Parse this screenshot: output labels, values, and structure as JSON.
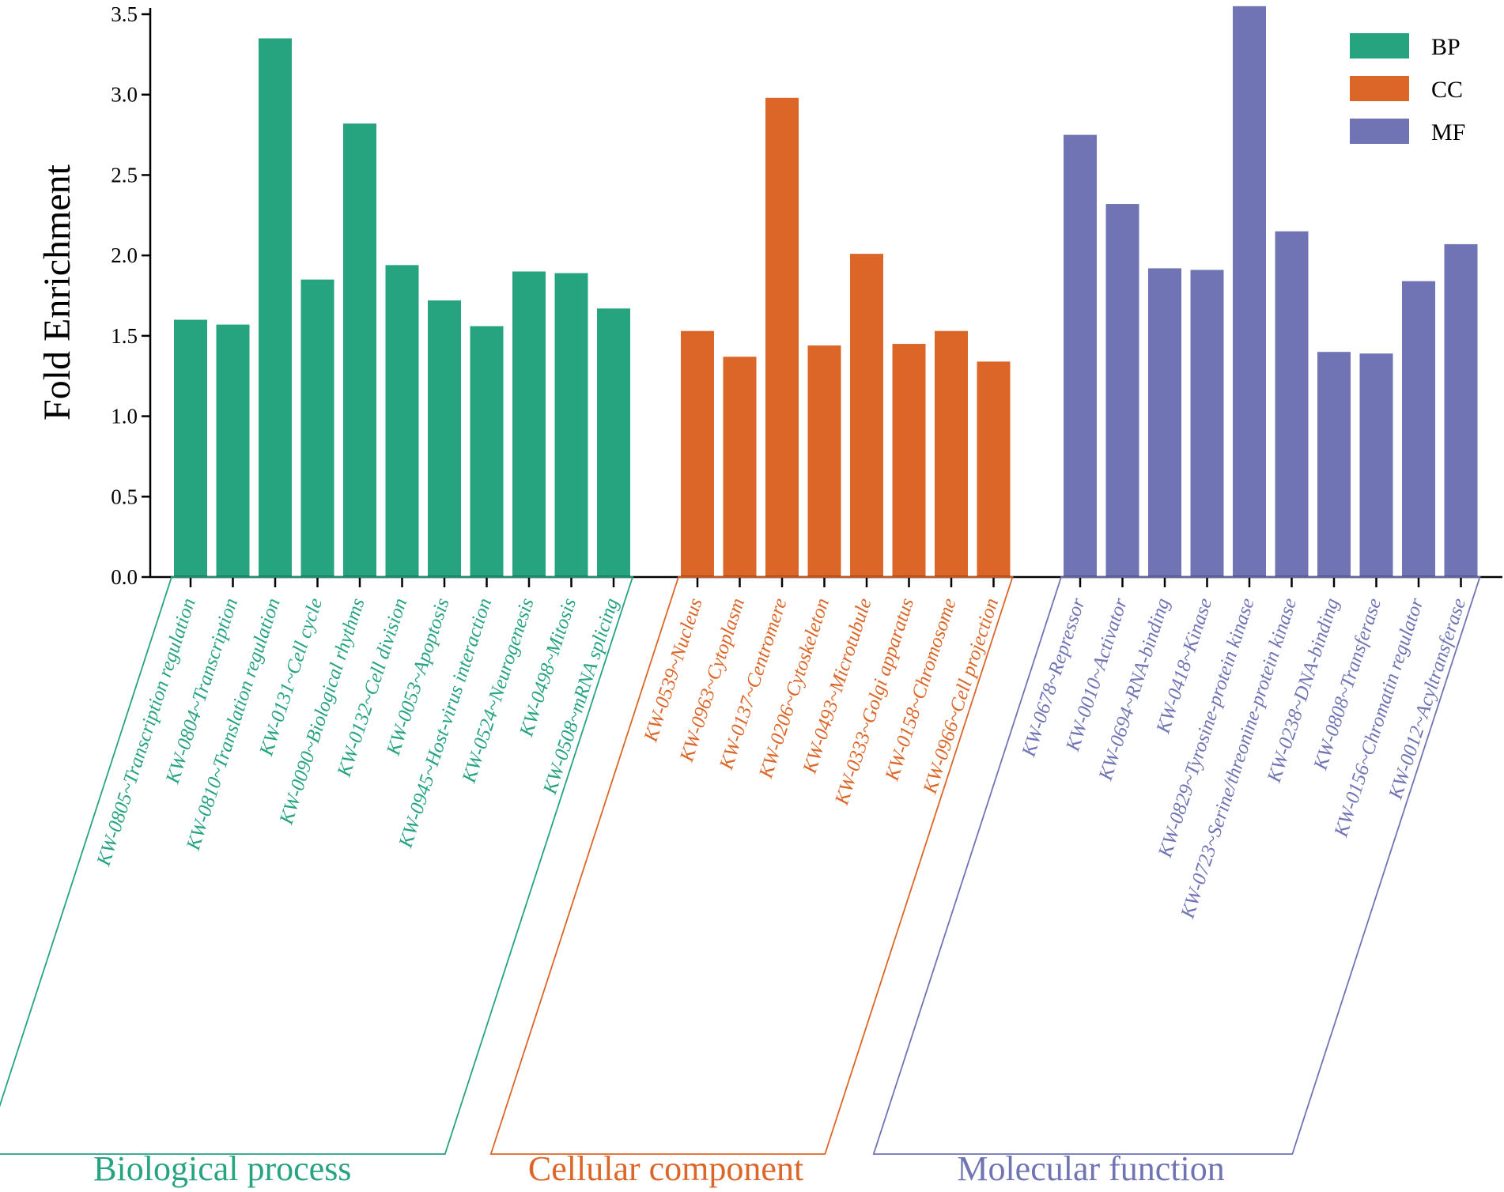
{
  "chart_data": {
    "type": "bar",
    "ylabel": "Fold Enrichment",
    "ylim": [
      0,
      3.5
    ],
    "yticks": [
      "0.0",
      "0.5",
      "1.0",
      "1.5",
      "2.0",
      "2.5",
      "3.0",
      "3.5"
    ],
    "colors": {
      "BP": "#26a37f",
      "CC": "#dc6628",
      "MF": "#7074b4"
    },
    "legend": [
      "BP",
      "CC",
      "MF"
    ],
    "legend_position": "top-right",
    "groups": [
      {
        "key": "BP",
        "name": "Biological process",
        "categories": [
          "KW-0805~Transcription regulation",
          "KW-0804~Transcription",
          "KW-0810~Translation regulation",
          "KW-0131~Cell cycle",
          "KW-0090~Biological rhythms",
          "KW-0132~Cell division",
          "KW-0053~Apoptosis",
          "KW-0945~Host-virus interaction",
          "KW-0524~Neurogenesis",
          "KW-0498~Mitosis",
          "KW-0508~mRNA splicing"
        ],
        "values": [
          1.6,
          1.57,
          3.35,
          1.85,
          2.82,
          1.94,
          1.72,
          1.56,
          1.9,
          1.89,
          1.67
        ]
      },
      {
        "key": "CC",
        "name": "Cellular component",
        "categories": [
          "KW-0539~Nucleus",
          "KW-0963~Cytoplasm",
          "KW-0137~Centromere",
          "KW-0206~Cytoskeleton",
          "KW-0493~Microtubule",
          "KW-0333~Golgi apparatus",
          "KW-0158~Chromosome",
          "KW-0966~Cell projection"
        ],
        "values": [
          1.53,
          1.37,
          2.98,
          1.44,
          2.01,
          1.45,
          1.53,
          1.34
        ]
      },
      {
        "key": "MF",
        "name": "Molecular function",
        "categories": [
          "KW-0678~Repressor",
          "KW-0010~Activator",
          "KW-0694~RNA-binding",
          "KW-0418~Kinase",
          "KW-0829~Tyrosine-protein kinase",
          "KW-0723~Serine/threonine-protein kinase",
          "KW-0238~DNA-binding",
          "KW-0808~Transferase",
          "KW-0156~Chromatin regulator",
          "KW-0012~Acyltransferase"
        ],
        "values": [
          2.75,
          2.32,
          1.92,
          1.91,
          3.55,
          2.15,
          1.4,
          1.39,
          1.84,
          2.07
        ]
      }
    ]
  }
}
